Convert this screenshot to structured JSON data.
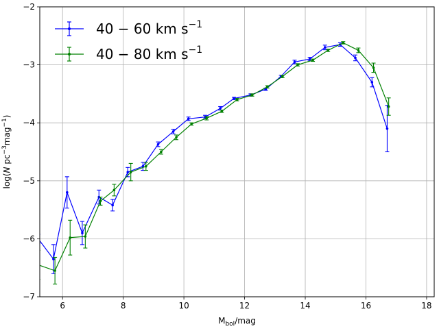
{
  "chart_data": {
    "type": "line",
    "title": "",
    "xlabel": "M_bol/mag",
    "xlabel_main": "M",
    "xlabel_sub": "bol",
    "xlabel_rest": "/mag",
    "ylabel": "log(N pc^-3 mag^-1)",
    "ylabel_parts": {
      "pre": "log(",
      "italic": "N",
      "mid": " pc",
      "sup1": "−3",
      "mid2": "mag",
      "sup2": "−1",
      "post": ")"
    },
    "xlim": [
      5.25,
      18.25
    ],
    "ylim": [
      -7,
      -2
    ],
    "xticks": [
      6,
      8,
      10,
      12,
      14,
      16,
      18
    ],
    "yticks": [
      -7,
      -6,
      -5,
      -4,
      -3,
      -2
    ],
    "xtick_labels": [
      "6",
      "8",
      "10",
      "12",
      "14",
      "16",
      "18"
    ],
    "ytick_labels": [
      "−7",
      "−6",
      "−5",
      "−4",
      "−3",
      "−2"
    ],
    "grid": true,
    "legend_position": "top-left",
    "series": [
      {
        "name": "40 − 60 km s^-1",
        "legend_main": "40 − 60 km s",
        "legend_sup": "−1",
        "color": "#0000ff",
        "x": [
          5.2,
          5.7,
          6.15,
          6.65,
          7.2,
          7.65,
          8.15,
          8.65,
          9.15,
          9.65,
          10.15,
          10.7,
          11.2,
          11.65,
          12.2,
          12.7,
          13.2,
          13.65,
          14.15,
          14.65,
          15.15,
          15.65,
          16.2,
          16.7
        ],
        "y": [
          -6.0,
          -6.35,
          -5.2,
          -5.9,
          -5.28,
          -5.42,
          -4.85,
          -4.75,
          -4.37,
          -4.15,
          -3.93,
          -3.9,
          -3.75,
          -3.58,
          -3.52,
          -3.42,
          -3.2,
          -2.95,
          -2.9,
          -2.7,
          -2.65,
          -2.88,
          -3.3,
          -4.1
        ],
        "err": [
          0.08,
          0.25,
          0.27,
          0.2,
          0.12,
          0.1,
          0.08,
          0.07,
          0.04,
          0.04,
          0.03,
          0.03,
          0.03,
          0.02,
          0.02,
          0.02,
          0.02,
          0.03,
          0.03,
          0.04,
          0.03,
          0.05,
          0.08,
          0.4
        ]
      },
      {
        "name": "40 − 80 km s^-1",
        "legend_main": "40 − 80 km s",
        "legend_sup": "−1",
        "color": "#008000",
        "x": [
          5.2,
          5.75,
          6.25,
          6.75,
          7.25,
          7.7,
          8.25,
          8.75,
          9.25,
          9.75,
          10.25,
          10.75,
          11.25,
          11.75,
          12.25,
          12.75,
          13.25,
          13.75,
          14.25,
          14.75,
          15.25,
          15.75,
          16.25,
          16.75
        ],
        "y": [
          -6.45,
          -6.55,
          -5.98,
          -5.96,
          -5.35,
          -5.16,
          -4.85,
          -4.75,
          -4.5,
          -4.25,
          -4.02,
          -3.92,
          -3.8,
          -3.6,
          -3.52,
          -3.38,
          -3.2,
          -3.0,
          -2.92,
          -2.75,
          -2.62,
          -2.75,
          -3.05,
          -3.72
        ],
        "err": [
          0.25,
          0.23,
          0.3,
          0.2,
          0.07,
          0.1,
          0.15,
          0.07,
          0.04,
          0.04,
          0.02,
          0.03,
          0.02,
          0.02,
          0.02,
          0.02,
          0.02,
          0.02,
          0.02,
          0.02,
          0.02,
          0.04,
          0.08,
          0.15
        ]
      }
    ]
  }
}
